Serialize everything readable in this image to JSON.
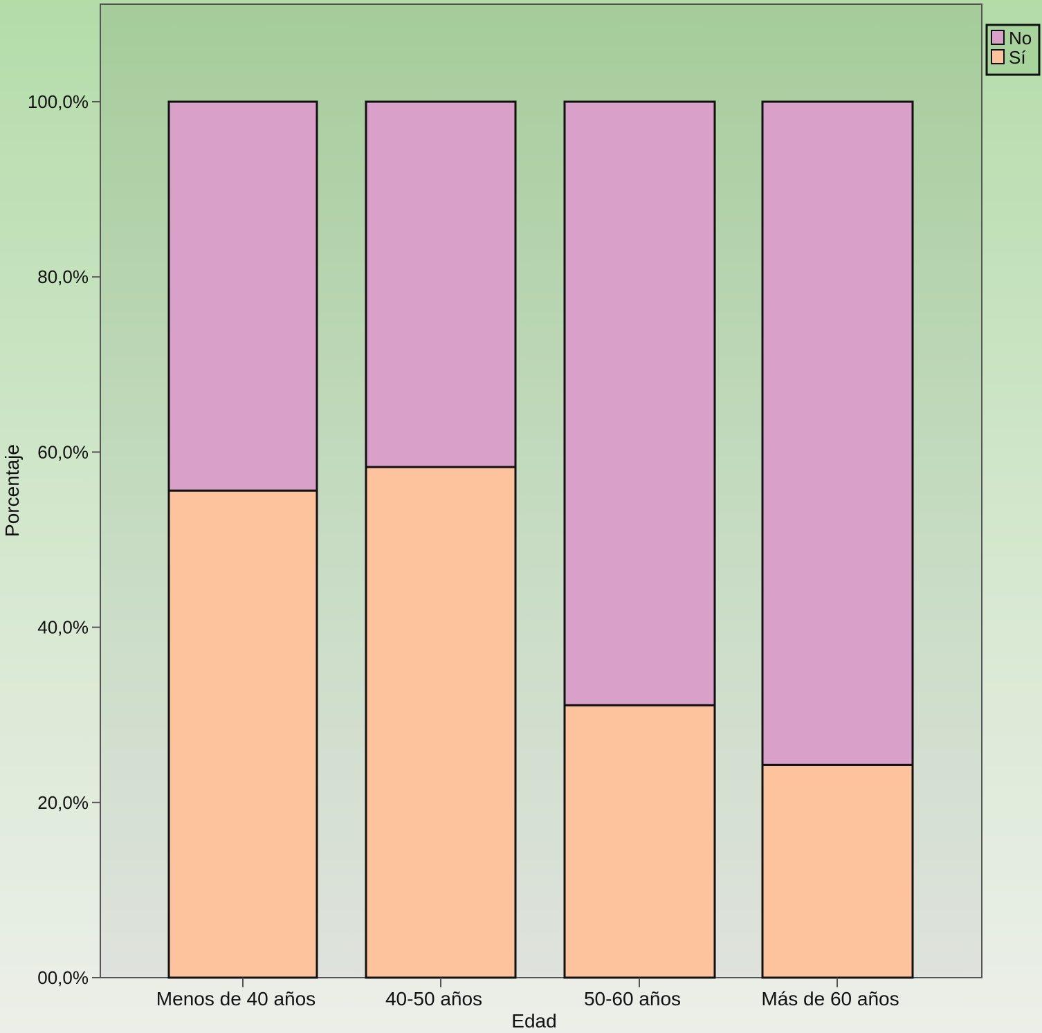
{
  "chart_data": {
    "type": "bar",
    "stacked": true,
    "categories": [
      "Menos de 40 años",
      "40-50 años",
      "50-60 años",
      "Más de 60 años"
    ],
    "series": [
      {
        "name": "Sí",
        "values": [
          55.6,
          58.3,
          31.1,
          24.3
        ]
      },
      {
        "name": "No",
        "values": [
          44.4,
          41.7,
          68.9,
          75.7
        ]
      }
    ],
    "xlabel": "Edad",
    "ylabel": "Porcentaje",
    "ylim": [
      0,
      100
    ],
    "yticks": [
      "00,0%",
      "20,0%",
      "40,0%",
      "60,0%",
      "80,0%",
      "100,0%"
    ],
    "ytick_values": [
      0,
      20,
      40,
      60,
      80,
      100
    ],
    "legend": {
      "placement": "top-right",
      "entries": [
        {
          "label": "No",
          "color": "#d9a1c9"
        },
        {
          "label": "Sí",
          "color": "#fdc39d"
        }
      ]
    },
    "colors": {
      "Sí": "#fdc39d",
      "No": "#d9a1c9"
    },
    "grid": false
  }
}
